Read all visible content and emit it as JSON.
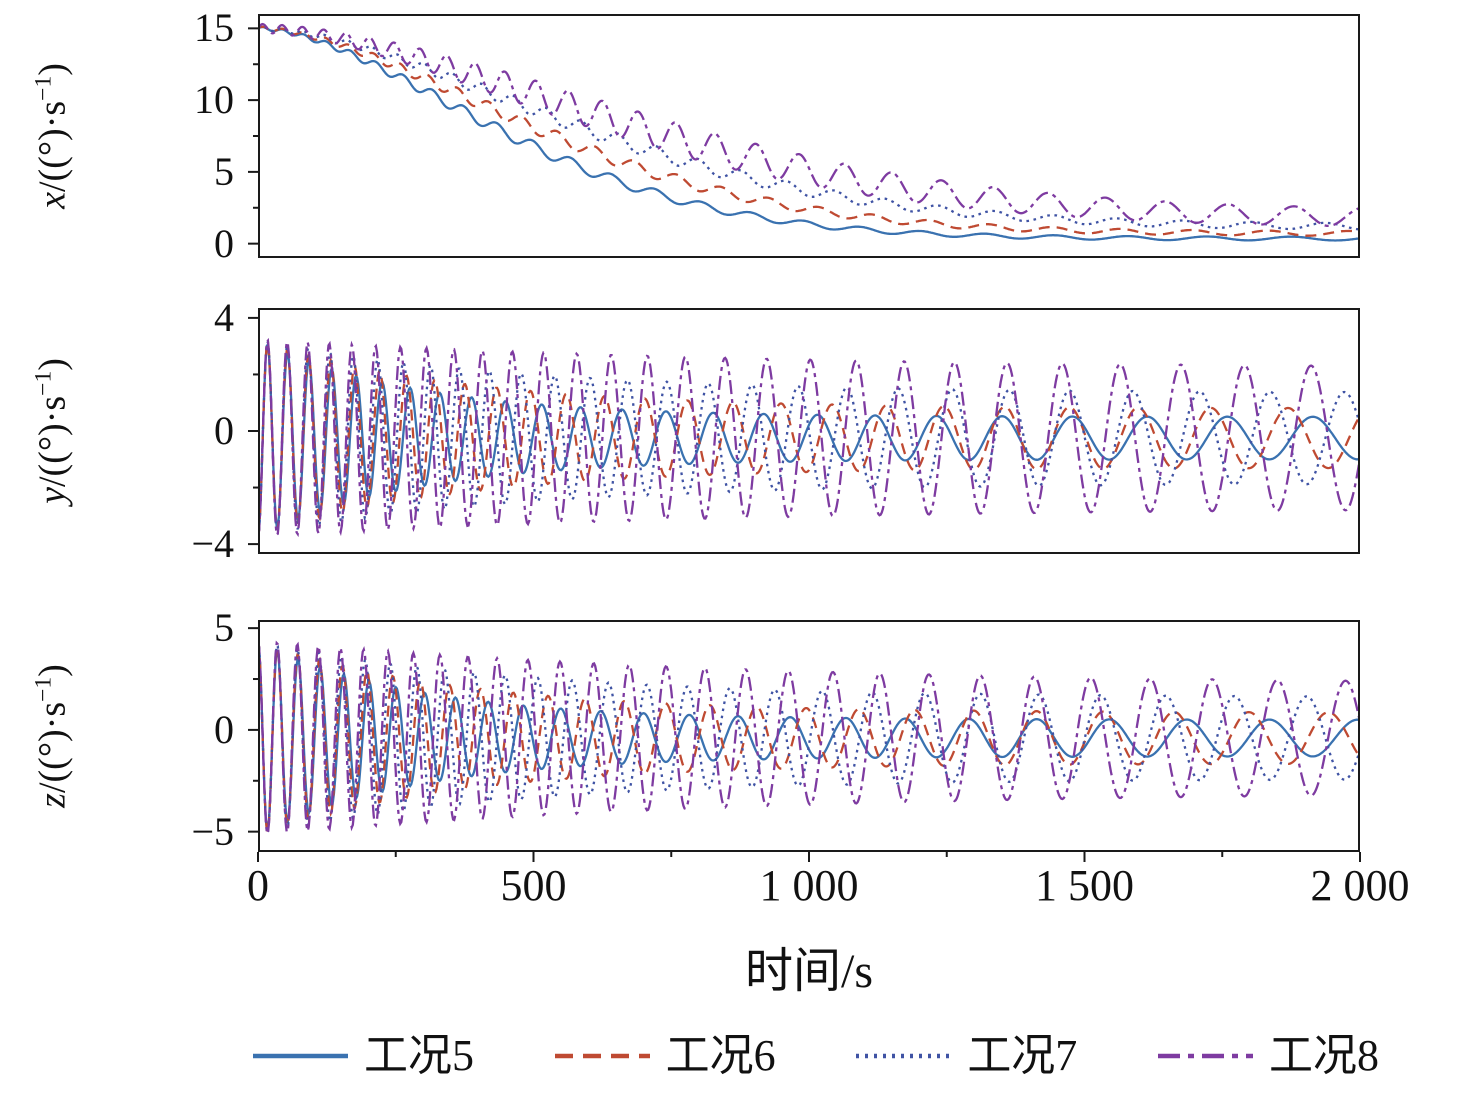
{
  "figure": {
    "background": "#ffffff",
    "frame_color": "#1a1a1a"
  },
  "chart_data": {
    "type": "line",
    "xlabel": "时间/s",
    "x_range": [
      0,
      2000
    ],
    "x_ticks": [
      {
        "value": 0,
        "label": "0"
      },
      {
        "value": 500,
        "label": "500"
      },
      {
        "value": 1000,
        "label": "1 000"
      },
      {
        "value": 1500,
        "label": "1 500"
      },
      {
        "value": 2000,
        "label": "2 000"
      }
    ],
    "x_minor_ticks": [
      250,
      750,
      1250,
      1750
    ],
    "legend_position": "bottom",
    "grid": false,
    "legend": [
      {
        "name": "工况5",
        "color": "#3a72b0",
        "dash": "solid"
      },
      {
        "name": "工况6",
        "color": "#bf4a32",
        "dash": "dashed"
      },
      {
        "name": "工况7",
        "color": "#3f53a4",
        "dash": "dotted"
      },
      {
        "name": "工况8",
        "color": "#7e3ba1",
        "dash": "dashdot"
      }
    ],
    "subplots": [
      {
        "id": "x",
        "ylabel_var": "x",
        "ylabel_unit_pre": "/((°)·s",
        "ylabel_sup": "−1",
        "ylabel_unit_post": ")",
        "ylim": [
          -1,
          16
        ],
        "y_ticks": [
          {
            "value": 0,
            "label": "0"
          },
          {
            "value": 5,
            "label": "5"
          },
          {
            "value": 10,
            "label": "10"
          },
          {
            "value": 15,
            "label": "15"
          }
        ],
        "y_minor_ticks": [
          2.5,
          7.5,
          12.5
        ],
        "model": "decay",
        "description": "Angular rate x decays from 15 (°)/s toward ~0.4–1.9 (°)/s by t=2000 s; case5 fastest, case8 slowest with visible ripples",
        "series": [
          {
            "name": "工况5",
            "start": 15,
            "floor": 0.35,
            "tau": 560,
            "shape": 1.7,
            "ripple": 0.35,
            "period0": 34,
            "chirp": 0.066
          },
          {
            "name": "工况6",
            "start": 15,
            "floor": 0.7,
            "tau": 640,
            "shape": 1.7,
            "ripple": 0.38,
            "period0": 34,
            "chirp": 0.059
          },
          {
            "name": "工况7",
            "start": 15,
            "floor": 1.15,
            "tau": 730,
            "shape": 1.7,
            "ripple": 0.42,
            "period0": 34,
            "chirp": 0.053
          },
          {
            "name": "工况8",
            "start": 15,
            "floor": 1.7,
            "tau": 830,
            "shape": 1.7,
            "ripple": 1.0,
            "period0": 34,
            "chirp": 0.047
          }
        ]
      },
      {
        "id": "y",
        "ylabel_var": "y",
        "ylabel_unit_pre": "/((°)·s",
        "ylabel_sup": "−1",
        "ylabel_unit_post": ")",
        "ylim": [
          -4.35,
          4.35
        ],
        "y_ticks": [
          {
            "value": 4,
            "label": "4"
          },
          {
            "value": 0,
            "label": "0"
          },
          {
            "value": -4,
            "label": "−4"
          }
        ],
        "y_minor_ticks": [
          2,
          -2
        ],
        "model": "chirp",
        "description": "Oscillation starting near −3.7 (°)/s, amplitude ~3.5 decaying; period stretches from ~34 s to ~150 s; end amplitudes: case5 ~0.75, case6 ~1.05, case7 ~1.6, case8 ~2.45",
        "series": [
          {
            "name": "工况5",
            "amp0": 3.5,
            "amp_end": 0.75,
            "amp_tau": 280,
            "center": -0.25,
            "phase0": -1.5708,
            "period0": 34,
            "chirp": 0.066
          },
          {
            "name": "工况6",
            "amp0": 3.5,
            "amp_end": 1.05,
            "amp_tau": 360,
            "center": -0.25,
            "phase0": -1.5708,
            "period0": 34,
            "chirp": 0.059
          },
          {
            "name": "工况7",
            "amp0": 3.5,
            "amp_end": 1.6,
            "amp_tau": 470,
            "center": -0.25,
            "phase0": -1.5708,
            "period0": 34,
            "chirp": 0.053
          },
          {
            "name": "工况8",
            "amp0": 3.5,
            "amp_end": 2.45,
            "amp_tau": 850,
            "center": -0.25,
            "phase0": -1.5708,
            "period0": 34,
            "chirp": 0.047
          }
        ]
      },
      {
        "id": "z",
        "ylabel_var": "z",
        "ylabel_unit_pre": "/((°)·s",
        "ylabel_sup": "−1",
        "ylabel_unit_post": ")",
        "ylim": [
          -6,
          5.4
        ],
        "y_ticks": [
          {
            "value": 5,
            "label": "5"
          },
          {
            "value": 0,
            "label": "0"
          },
          {
            "value": -5,
            "label": "−5"
          }
        ],
        "y_minor_ticks": [
          2.5,
          -2.5
        ],
        "model": "chirp",
        "description": "Oscillation starting near +4.4 (°)/s, dipping to ~−5.2; amplitude decays; end amplitudes: case5 ~0.9, case6 ~1.25, case7 ~2.0, case8 ~2.6",
        "series": [
          {
            "name": "工况5",
            "amp0": 4.8,
            "amp_end": 0.9,
            "amp_tau": 280,
            "center": -0.4,
            "phase0": 1.5708,
            "period0": 34,
            "chirp": 0.066
          },
          {
            "name": "工况6",
            "amp0": 4.8,
            "amp_end": 1.25,
            "amp_tau": 360,
            "center": -0.4,
            "phase0": 1.5708,
            "period0": 34,
            "chirp": 0.059
          },
          {
            "name": "工况7",
            "amp0": 4.8,
            "amp_end": 2.0,
            "amp_tau": 470,
            "center": -0.4,
            "phase0": 1.5708,
            "period0": 34,
            "chirp": 0.053
          },
          {
            "name": "工况8",
            "amp0": 4.8,
            "amp_end": 2.6,
            "amp_tau": 850,
            "center": -0.4,
            "phase0": 1.5708,
            "period0": 34,
            "chirp": 0.047
          }
        ]
      }
    ]
  }
}
